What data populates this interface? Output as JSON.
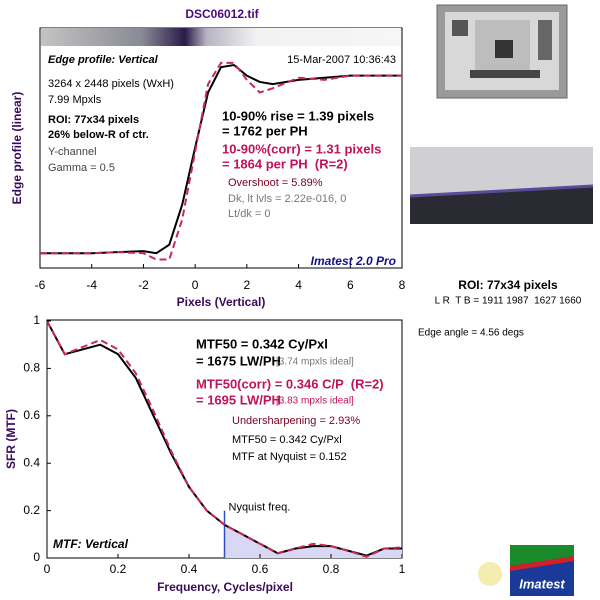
{
  "title": "DSC06012.tif",
  "chart_data": [
    {
      "type": "line",
      "title": "Edge profile: Vertical",
      "timestamp": "15-Mar-2007 10:36:43",
      "info": [
        "3264 x 2448 pixels (WxH)",
        "7.99 Mpxls",
        "ROI: 77x34 pixels",
        "26% below-R of ctr.",
        "Y-channel",
        "Gamma = 0.5"
      ],
      "results": [
        "10-90% rise = 1.39 pixels",
        "= 1762 per PH",
        "10-90%(corr) = 1.31 pixels",
        "= 1864 per PH  (R=2)",
        "Overshoot = 5.89%",
        "Dk, lt lvls = 2.22e-016, 0",
        "Lt/dk = 0"
      ],
      "brand": "Imatest 2.0 Pro",
      "xlabel": "Pixels (Vertical)",
      "ylabel": "Edge profile (linear)",
      "x": [
        -6,
        -5,
        -4,
        -3,
        -2,
        -1.5,
        -1,
        -0.5,
        0,
        0.5,
        1,
        1.5,
        2,
        2.5,
        3,
        4,
        5,
        6,
        7,
        8
      ],
      "series": [
        {
          "color": "#000000",
          "style": "solid",
          "values": [
            0.02,
            0.02,
            0.02,
            0.025,
            0.03,
            0.02,
            0.06,
            0.25,
            0.52,
            0.78,
            0.9,
            0.91,
            0.86,
            0.83,
            0.82,
            0.84,
            0.85,
            0.86,
            0.86,
            0.86
          ]
        },
        {
          "color": "#c8285a",
          "style": "dashed",
          "values": [
            0.02,
            0.02,
            0.02,
            0.025,
            0.02,
            -0.01,
            -0.01,
            0.18,
            0.5,
            0.82,
            0.92,
            0.92,
            0.84,
            0.78,
            0.8,
            0.85,
            0.84,
            0.86,
            0.86,
            0.86
          ]
        }
      ],
      "xlim": [
        -6,
        8
      ],
      "xticks": [
        -6,
        -4,
        -2,
        0,
        2,
        4,
        6,
        8
      ],
      "ylim": [
        -0.05,
        1
      ]
    },
    {
      "type": "line",
      "title": "MTF: Vertical",
      "results": [
        "MTF50 = 0.342 Cy/Pxl",
        "= 1675 LW/PH",
        "[3.74 mpxls ideal]",
        "MTF50(corr) = 0.346 C/P  (R=2)",
        "= 1695 LW/PH",
        "[3.83 mpxls ideal]",
        "Undersharpening = 2.93%",
        "MTF50 = 0.342 Cy/Pxl",
        "MTF at Nyquist = 0.152"
      ],
      "xlabel": "Frequency, Cycles/pixel",
      "ylabel": "SFR (MTF)",
      "nyquist": {
        "x": 0.5,
        "y": 0.2,
        "label": "Nyquist freq.",
        "color": "#3050c0",
        "fill": "#d8d8f4"
      },
      "x": [
        0,
        0.05,
        0.1,
        0.15,
        0.2,
        0.25,
        0.3,
        0.35,
        0.4,
        0.45,
        0.5,
        0.55,
        0.6,
        0.65,
        0.7,
        0.75,
        0.8,
        0.85,
        0.9,
        0.95,
        1
      ],
      "series": [
        {
          "color": "#000000",
          "style": "solid",
          "values": [
            1,
            0.86,
            0.88,
            0.9,
            0.86,
            0.76,
            0.6,
            0.44,
            0.3,
            0.2,
            0.14,
            0.1,
            0.06,
            0.02,
            0.04,
            0.05,
            0.05,
            0.03,
            0.01,
            0.04,
            0.04
          ]
        },
        {
          "color": "#c8285a",
          "style": "dashed",
          "values": [
            1,
            0.86,
            0.89,
            0.92,
            0.88,
            0.78,
            0.62,
            0.45,
            0.3,
            0.2,
            0.14,
            0.1,
            0.06,
            0.02,
            0.04,
            0.06,
            0.05,
            0.03,
            0.005,
            0.04,
            0.045
          ]
        }
      ],
      "xlim": [
        0,
        1
      ],
      "xticks": [
        0,
        0.2,
        0.4,
        0.6,
        0.8,
        1
      ],
      "ylim": [
        0,
        1
      ],
      "yticks": [
        0,
        0.2,
        0.4,
        0.6,
        0.8,
        1
      ]
    }
  ],
  "roi_panel": {
    "roi": "ROI: 77x34 pixels",
    "coords": "L R  T B = 1911 1987  1627 1660",
    "edge_angle": "Edge angle = 4.56 degs"
  },
  "logo": "Imatest"
}
